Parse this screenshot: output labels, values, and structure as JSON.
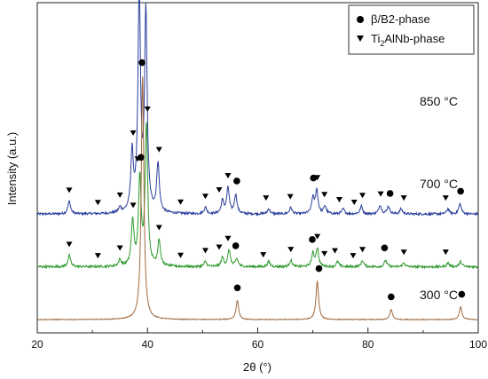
{
  "chart_data": {
    "type": "line",
    "xlabel": "2θ (°)",
    "ylabel": "Intensity (a.u.)",
    "xlim": [
      20,
      100
    ],
    "xticks": [
      20,
      40,
      60,
      80,
      100
    ],
    "grid": false,
    "legend_position": "top-right",
    "legend": [
      {
        "marker": "circle",
        "label": "β/B2-phase"
      },
      {
        "marker": "triangle-down",
        "label_main": "Ti",
        "label_sub": "2",
        "label_rest": "AlNb-phase"
      }
    ],
    "series": [
      {
        "name": "850 °C",
        "color": "#2b3f9c",
        "baseline": 0.84,
        "peaks": [
          [
            25.8,
            0.1
          ],
          [
            35.0,
            0.04
          ],
          [
            37.2,
            0.45
          ],
          [
            38.5,
            1.7
          ],
          [
            39.7,
            1.55
          ],
          [
            41.9,
            0.38
          ],
          [
            50.5,
            0.05
          ],
          [
            53.6,
            0.1
          ],
          [
            54.6,
            0.2
          ],
          [
            56.0,
            0.15
          ],
          [
            62.0,
            0.04
          ],
          [
            66.0,
            0.05
          ],
          [
            70.0,
            0.12
          ],
          [
            70.7,
            0.18
          ],
          [
            72.2,
            0.06
          ],
          [
            75.5,
            0.04
          ],
          [
            78.8,
            0.06
          ],
          [
            82.2,
            0.07
          ],
          [
            83.7,
            0.06
          ],
          [
            86.0,
            0.04
          ],
          [
            94.5,
            0.04
          ],
          [
            96.7,
            0.08
          ]
        ],
        "beta_markers": [
          38.8,
          56.2,
          70.1,
          84.0,
          96.8
        ],
        "ti2alnb_markers": [
          25.8,
          31.0,
          35.0,
          37.4,
          38.2,
          39.9,
          42.1,
          46.0,
          50.5,
          53.0,
          54.6,
          61.5,
          65.9,
          70.8,
          72.1,
          74.8,
          77.5,
          79.0,
          82.3,
          86.5,
          94.1
        ]
      },
      {
        "name": "700 °C",
        "color": "#2e9a2e",
        "baseline": 0.43,
        "peaks": [
          [
            25.8,
            0.09
          ],
          [
            35.0,
            0.05
          ],
          [
            37.3,
            0.35
          ],
          [
            38.6,
            0.68
          ],
          [
            39.8,
            1.1
          ],
          [
            42.1,
            0.2
          ],
          [
            50.5,
            0.04
          ],
          [
            53.6,
            0.07
          ],
          [
            54.8,
            0.13
          ],
          [
            56.2,
            0.06
          ],
          [
            62.0,
            0.04
          ],
          [
            66.0,
            0.05
          ],
          [
            70.0,
            0.1
          ],
          [
            70.8,
            0.14
          ],
          [
            74.5,
            0.04
          ],
          [
            79.0,
            0.05
          ],
          [
            83.2,
            0.05
          ],
          [
            86.5,
            0.03
          ],
          [
            94.5,
            0.03
          ],
          [
            96.8,
            0.04
          ]
        ],
        "beta_markers": [
          38.8,
          56.0,
          69.9,
          83.0
        ],
        "ti2alnb_markers": [
          25.8,
          31.0,
          35.0,
          37.4,
          38.2,
          40.0,
          42.1,
          46.0,
          50.5,
          53.0,
          54.6,
          61.0,
          66.0,
          70.8,
          72.1,
          74.0,
          77.3,
          79.0,
          86.5,
          94.1
        ]
      },
      {
        "name": "300 °C",
        "color": "#a06a3e",
        "baseline": 0.02,
        "peaks": [
          [
            39.1,
            1.9
          ],
          [
            56.3,
            0.15
          ],
          [
            70.8,
            0.3
          ],
          [
            84.2,
            0.08
          ],
          [
            96.8,
            0.1
          ]
        ],
        "beta_markers": [
          39.0,
          56.3,
          71.1,
          84.2,
          97.0
        ],
        "ti2alnb_markers": []
      }
    ]
  }
}
